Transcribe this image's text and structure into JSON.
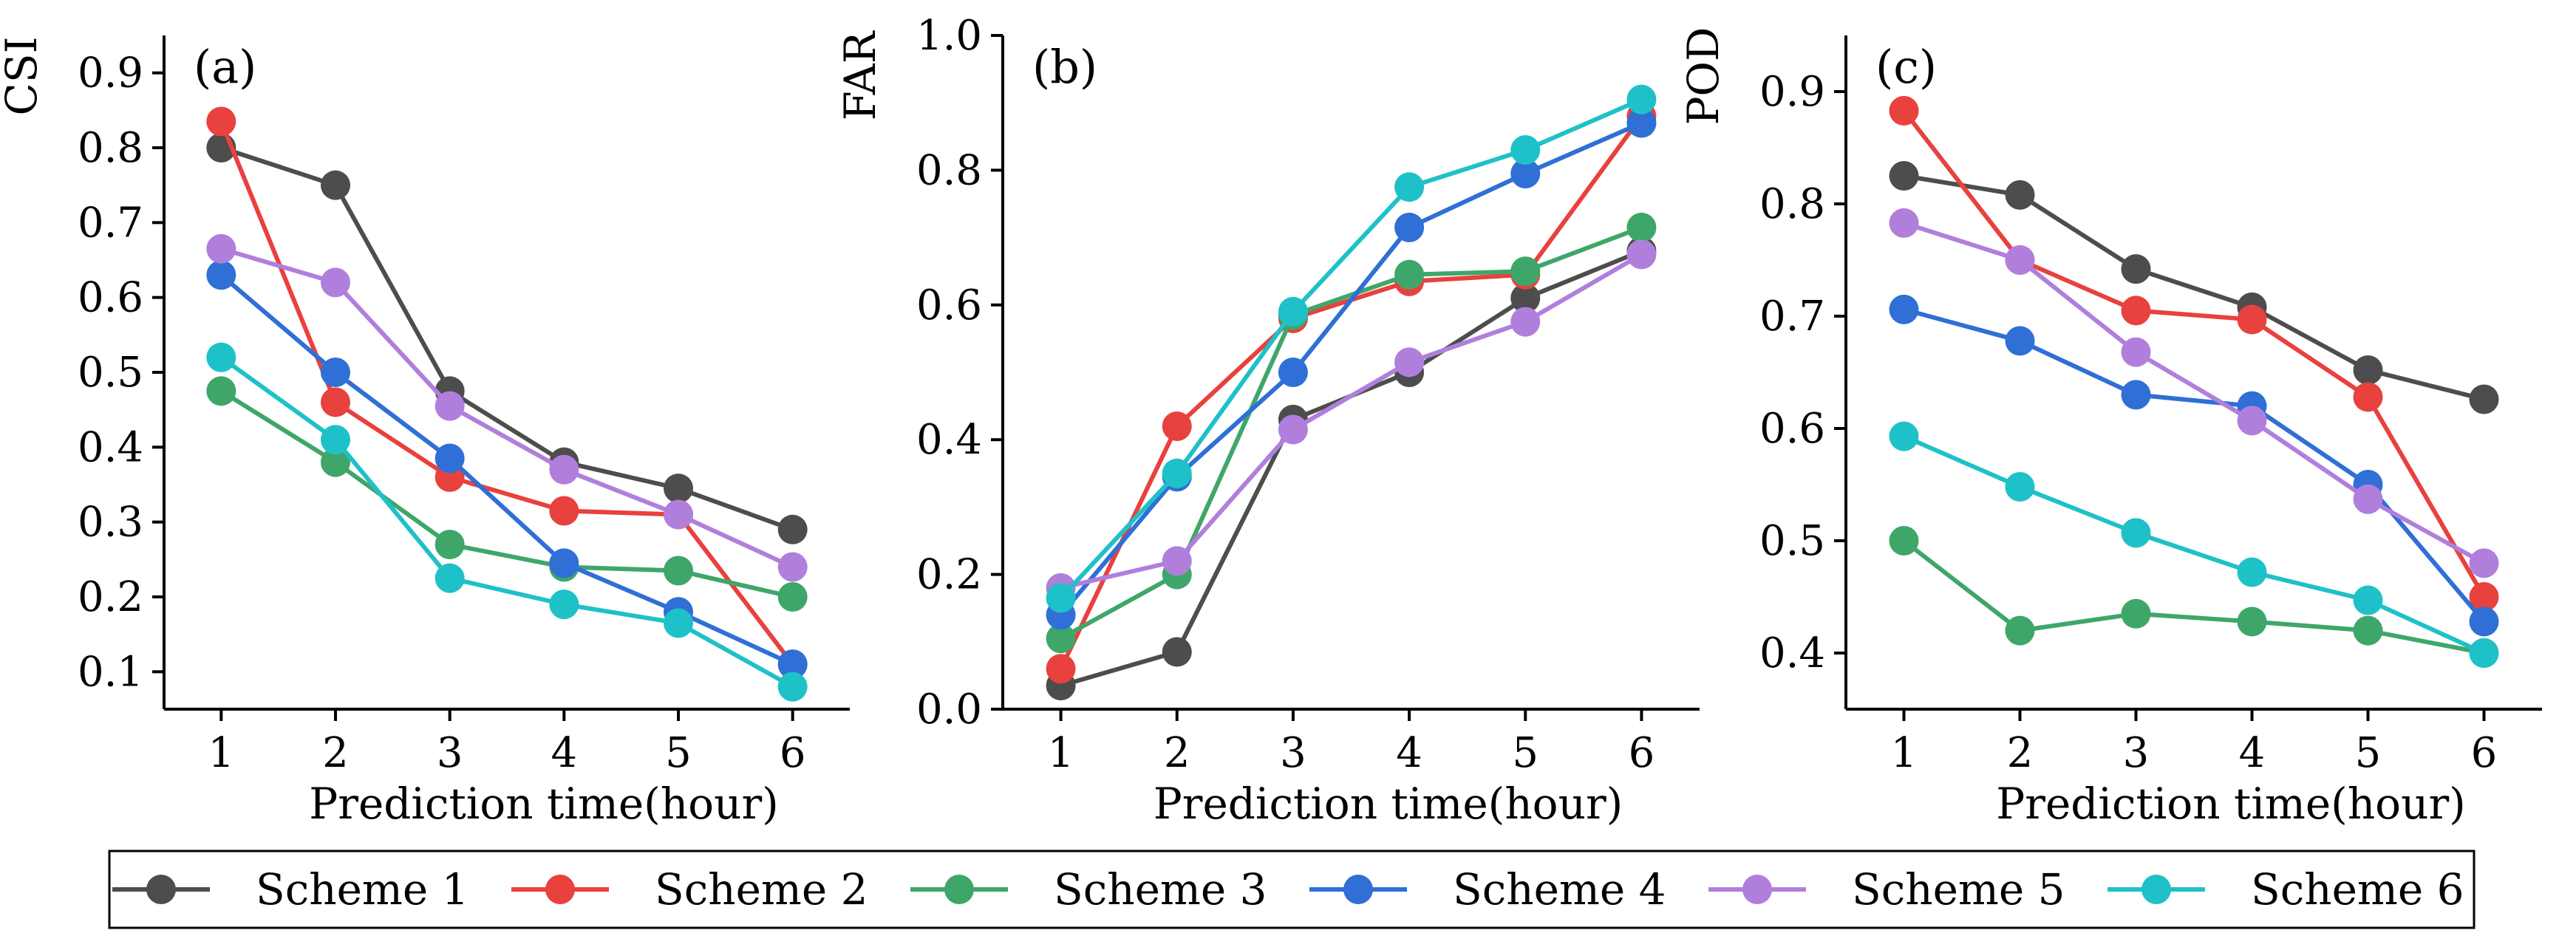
{
  "chart_data": [
    {
      "type": "line",
      "panel_label": "(a)",
      "ylabel": "CSI",
      "xlabel": "Prediction time(hour)",
      "x": [
        1,
        2,
        3,
        4,
        5,
        6
      ],
      "xtick_labels": [
        "1",
        "2",
        "3",
        "4",
        "5",
        "6"
      ],
      "ylim": [
        0.05,
        0.95
      ],
      "yticks": [
        0.1,
        0.2,
        0.3,
        0.4,
        0.5,
        0.6,
        0.7,
        0.8,
        0.9
      ],
      "ytick_labels": [
        "0.1",
        "0.2",
        "0.3",
        "0.4",
        "0.5",
        "0.6",
        "0.7",
        "0.8",
        "0.9"
      ],
      "series": [
        {
          "name": "Scheme 1",
          "values": [
            0.8,
            0.75,
            0.475,
            0.38,
            0.345,
            0.29
          ]
        },
        {
          "name": "Scheme 2",
          "values": [
            0.835,
            0.46,
            0.36,
            0.315,
            0.31,
            0.11
          ]
        },
        {
          "name": "Scheme 3",
          "values": [
            0.475,
            0.38,
            0.27,
            0.24,
            0.235,
            0.2
          ]
        },
        {
          "name": "Scheme 4",
          "values": [
            0.63,
            0.5,
            0.385,
            0.245,
            0.18,
            0.11
          ]
        },
        {
          "name": "Scheme 5",
          "values": [
            0.665,
            0.62,
            0.455,
            0.37,
            0.31,
            0.24
          ]
        },
        {
          "name": "Scheme 6",
          "values": [
            0.52,
            0.41,
            0.225,
            0.19,
            0.165,
            0.08
          ]
        }
      ]
    },
    {
      "type": "line",
      "panel_label": "(b)",
      "ylabel": "FAR",
      "xlabel": "Prediction time(hour)",
      "x": [
        1,
        2,
        3,
        4,
        5,
        6
      ],
      "xtick_labels": [
        "1",
        "2",
        "3",
        "4",
        "5",
        "6"
      ],
      "ylim": [
        0.0,
        1.0
      ],
      "yticks": [
        0.0,
        0.2,
        0.4,
        0.6,
        0.8,
        1.0
      ],
      "ytick_labels": [
        "0.0",
        "0.2",
        "0.4",
        "0.6",
        "0.8",
        "1.0"
      ],
      "series": [
        {
          "name": "Scheme 1",
          "values": [
            0.035,
            0.085,
            0.43,
            0.5,
            0.61,
            0.68
          ]
        },
        {
          "name": "Scheme 2",
          "values": [
            0.06,
            0.42,
            0.58,
            0.635,
            0.645,
            0.88
          ]
        },
        {
          "name": "Scheme 3",
          "values": [
            0.105,
            0.2,
            0.585,
            0.645,
            0.65,
            0.715
          ]
        },
        {
          "name": "Scheme 4",
          "values": [
            0.14,
            0.345,
            0.5,
            0.715,
            0.795,
            0.87
          ]
        },
        {
          "name": "Scheme 5",
          "values": [
            0.18,
            0.22,
            0.415,
            0.515,
            0.575,
            0.675
          ]
        },
        {
          "name": "Scheme 6",
          "values": [
            0.165,
            0.35,
            0.59,
            0.775,
            0.83,
            0.905
          ]
        }
      ]
    },
    {
      "type": "line",
      "panel_label": "(c)",
      "ylabel": "POD",
      "xlabel": "Prediction time(hour)",
      "x": [
        1,
        2,
        3,
        4,
        5,
        6
      ],
      "xtick_labels": [
        "1",
        "2",
        "3",
        "4",
        "5",
        "6"
      ],
      "ylim": [
        0.35,
        0.95
      ],
      "yticks": [
        0.4,
        0.5,
        0.6,
        0.7,
        0.8,
        0.9
      ],
      "ytick_labels": [
        "0.4",
        "0.5",
        "0.6",
        "0.7",
        "0.8",
        "0.9"
      ],
      "series": [
        {
          "name": "Scheme 1",
          "values": [
            0.825,
            0.808,
            0.742,
            0.708,
            0.652,
            0.626
          ]
        },
        {
          "name": "Scheme 2",
          "values": [
            0.883,
            0.75,
            0.705,
            0.697,
            0.628,
            0.45
          ]
        },
        {
          "name": "Scheme 3",
          "values": [
            0.5,
            0.42,
            0.435,
            0.428,
            0.42,
            0.4
          ]
        },
        {
          "name": "Scheme 4",
          "values": [
            0.706,
            0.678,
            0.63,
            0.62,
            0.55,
            0.428
          ]
        },
        {
          "name": "Scheme 5",
          "values": [
            0.783,
            0.75,
            0.668,
            0.607,
            0.537,
            0.48
          ]
        },
        {
          "name": "Scheme 6",
          "values": [
            0.593,
            0.548,
            0.507,
            0.472,
            0.447,
            0.4
          ]
        }
      ]
    }
  ],
  "legend": {
    "items": [
      "Scheme 1",
      "Scheme 2",
      "Scheme 3",
      "Scheme 4",
      "Scheme 5",
      "Scheme 6"
    ],
    "placement": "bottom"
  },
  "colors": {
    "Scheme 1": "#4d4d4d",
    "Scheme 2": "#e8413e",
    "Scheme 3": "#3fa66a",
    "Scheme 4": "#2f6fd6",
    "Scheme 5": "#b07fdc",
    "Scheme 6": "#1fc1c8"
  }
}
